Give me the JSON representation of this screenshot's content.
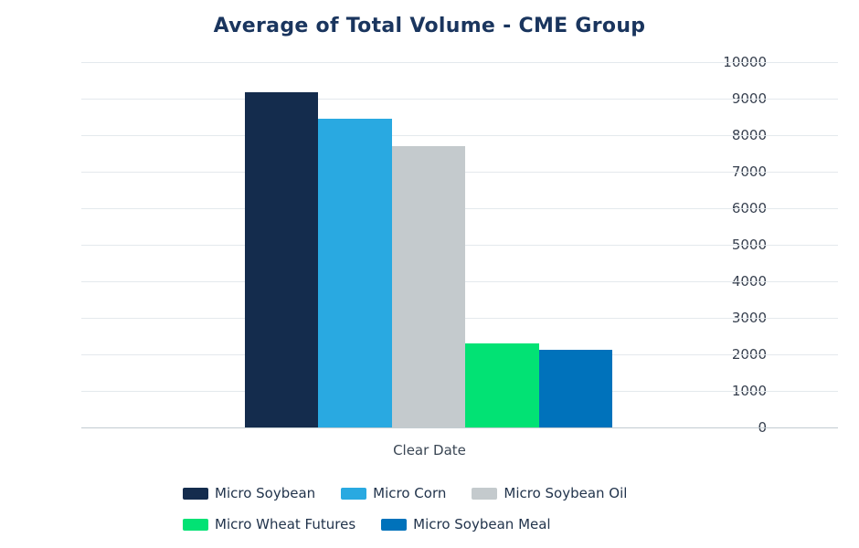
{
  "title": "Average of Total Volume - CME Group",
  "chart_data": {
    "type": "bar",
    "title": "Average of Total Volume - CME Group",
    "categories": [
      "Clear Date"
    ],
    "series": [
      {
        "name": "Micro Soybean",
        "color": "#142c4d",
        "values": [
          9170
        ]
      },
      {
        "name": "Micro Corn",
        "color": "#29a9e1",
        "values": [
          8460
        ]
      },
      {
        "name": "Micro Soybean Oil",
        "color": "#c4cacd",
        "values": [
          7690
        ]
      },
      {
        "name": "Micro Wheat Futures",
        "color": "#02e274",
        "values": [
          2300
        ]
      },
      {
        "name": "Micro Soybean Meal",
        "color": "#0072bb",
        "values": [
          2120
        ]
      }
    ],
    "xlabel": "Clear Date",
    "ylabel": "",
    "ylim": [
      0,
      10000
    ],
    "ytick_step": 1000,
    "grid": true,
    "legend_position": "bottom"
  },
  "colors": {
    "title_text": "#1a355e",
    "tick_text": "#363f4e",
    "axis_label_text": "#3a4654",
    "legend_text": "#22344c",
    "gridline": "#e4e9ed",
    "axis_line": "#c2ccd1",
    "background": "#ffffff"
  }
}
